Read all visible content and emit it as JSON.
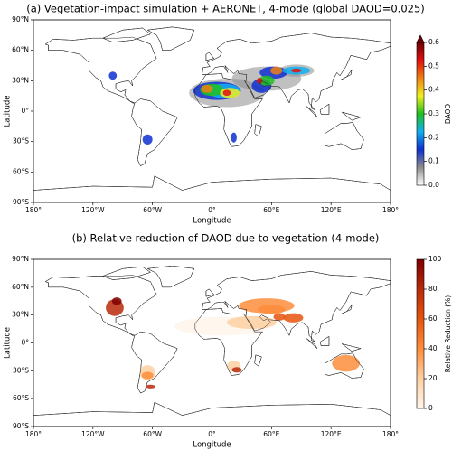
{
  "chart_data": [
    {
      "type": "map",
      "title": "(a) Vegetation-impact simulation + AERONET, 4-mode (global DAOD=0.025)",
      "xlabel": "Longitude",
      "ylabel": "Latitude",
      "xlim": [
        -180,
        180
      ],
      "ylim": [
        -90,
        90
      ],
      "xticks": [
        {
          "value": -180,
          "label": "180°"
        },
        {
          "value": -120,
          "label": "120°W"
        },
        {
          "value": -60,
          "label": "60°W"
        },
        {
          "value": 0,
          "label": "0°"
        },
        {
          "value": 60,
          "label": "60°E"
        },
        {
          "value": 120,
          "label": "120°E"
        },
        {
          "value": 180,
          "label": "180°"
        }
      ],
      "yticks": [
        {
          "value": -90,
          "label": "90°S"
        },
        {
          "value": -60,
          "label": "60°S"
        },
        {
          "value": -30,
          "label": "30°S"
        },
        {
          "value": 0,
          "label": "0°"
        },
        {
          "value": 30,
          "label": "30°N"
        },
        {
          "value": 60,
          "label": "60°N"
        },
        {
          "value": 90,
          "label": "90°N"
        }
      ],
      "colorbar": {
        "label": "DAOD",
        "lim": [
          0,
          0.6
        ],
        "ticks": [
          {
            "value": 0,
            "label": "0.0"
          },
          0.1,
          0.2,
          0.3,
          0.4,
          0.5,
          0.6
        ],
        "extend": "max",
        "colormap": [
          "#ffffff",
          "#8c8c8c",
          "#1030d0",
          "#10b0f0",
          "#20c020",
          "#f0f020",
          "#f08010",
          "#e01010",
          "#700000"
        ]
      }
    },
    {
      "type": "map",
      "title": "(b) Relative reduction of DAOD due to vegetation (4-mode)",
      "xlabel": "Longitude",
      "ylabel": "Latitude",
      "xlim": [
        -180,
        180
      ],
      "ylim": [
        -90,
        90
      ],
      "xticks": [
        {
          "value": -180,
          "label": "180°"
        },
        {
          "value": -120,
          "label": "120°W"
        },
        {
          "value": -60,
          "label": "60°W"
        },
        {
          "value": 0,
          "label": "0°"
        },
        {
          "value": 60,
          "label": "60°E"
        },
        {
          "value": 120,
          "label": "120°E"
        },
        {
          "value": 180,
          "label": "180°"
        }
      ],
      "yticks": [
        {
          "value": -90,
          "label": "90°S"
        },
        {
          "value": -60,
          "label": "60°S"
        },
        {
          "value": -30,
          "label": "30°S"
        },
        {
          "value": 0,
          "label": "0°"
        },
        {
          "value": 30,
          "label": "30°N"
        },
        {
          "value": 60,
          "label": "60°N"
        },
        {
          "value": 90,
          "label": "90°N"
        }
      ],
      "colorbar": {
        "label": "Relative Reduction (%)",
        "lim": [
          0,
          100
        ],
        "ticks": [
          0,
          20,
          40,
          60,
          80,
          100
        ],
        "extend": "neither",
        "colormap": [
          "#fff5eb",
          "#fdd0a2",
          "#fd8d3c",
          "#e6550d",
          "#b82a0a",
          "#7f0000"
        ]
      }
    }
  ]
}
